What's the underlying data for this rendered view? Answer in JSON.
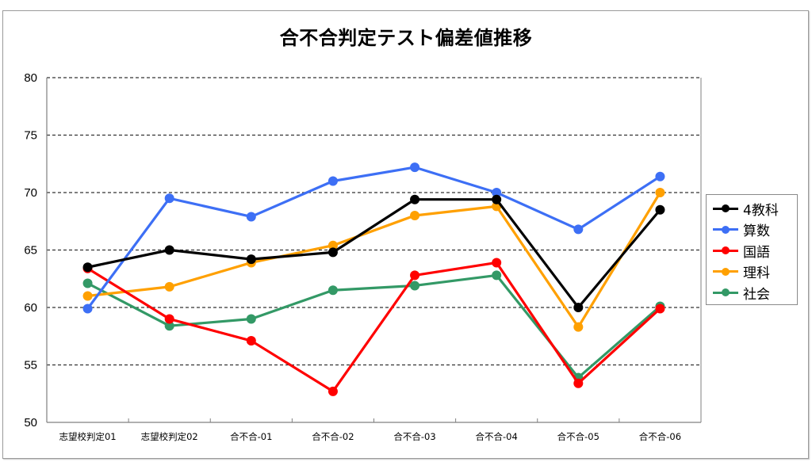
{
  "chart_data": {
    "type": "line",
    "title": "合不合判定テスト偏差値推移",
    "xlabel": "",
    "ylabel": "",
    "ylim": [
      50,
      80
    ],
    "yticks": [
      80,
      75,
      70,
      65,
      60,
      55,
      50
    ],
    "grid": true,
    "legend_position": "right",
    "categories": [
      "志望校判定01",
      "志望校判定02",
      "合不合-01",
      "合不合-02",
      "合不合-03",
      "合不合-04",
      "合不合-05",
      "合不合-06"
    ],
    "series": [
      {
        "name": "4教科",
        "color": "#000000",
        "values": [
          63.5,
          65.0,
          64.2,
          64.8,
          69.4,
          69.4,
          60.0,
          68.5
        ]
      },
      {
        "name": "算数",
        "color": "#3d6ff5",
        "values": [
          59.9,
          69.5,
          67.9,
          71.0,
          72.2,
          70.0,
          66.8,
          71.4
        ]
      },
      {
        "name": "国語",
        "color": "#ff0000",
        "values": [
          63.4,
          59.0,
          57.1,
          52.7,
          62.8,
          63.9,
          53.4,
          59.9
        ]
      },
      {
        "name": "理科",
        "color": "#ffa000",
        "values": [
          61.0,
          61.8,
          63.9,
          65.4,
          68.0,
          68.8,
          58.3,
          70.0
        ]
      },
      {
        "name": "社会",
        "color": "#339966",
        "values": [
          62.1,
          58.4,
          59.0,
          61.5,
          61.9,
          62.8,
          53.9,
          60.1
        ]
      }
    ]
  }
}
